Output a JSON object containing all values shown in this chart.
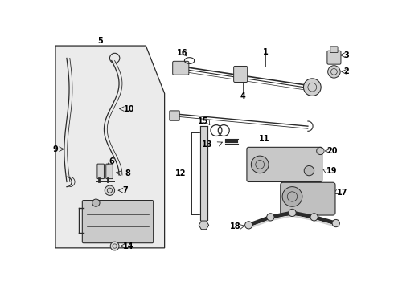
{
  "bg_color": "#ffffff",
  "panel_bg": "#ebebeb",
  "line_color": "#2a2a2a",
  "label_color": "#000000",
  "label_fontsize": 7.0,
  "fig_width": 4.9,
  "fig_height": 3.6,
  "dpi": 100
}
